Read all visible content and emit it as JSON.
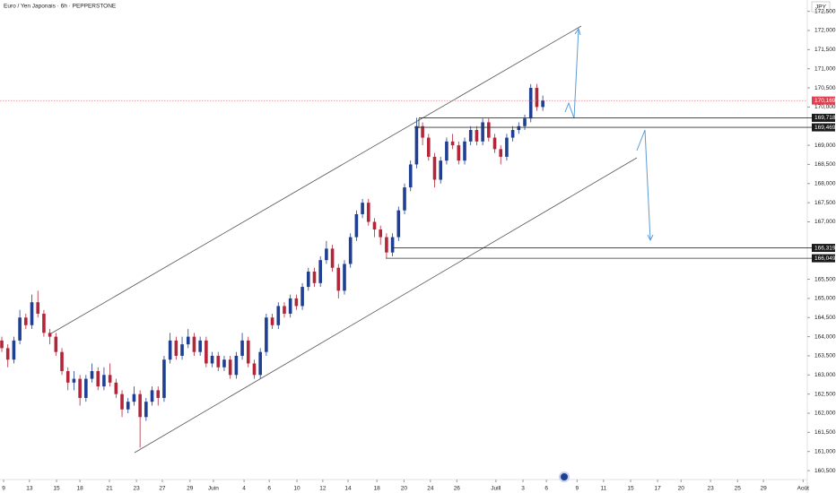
{
  "chart_data": {
    "type": "candlestick",
    "title": "Euro / Yen Japonais · 6h · PEPPERSTONE",
    "currency": "JPY",
    "up_color": "#1f3f93",
    "down_color": "#b3263a",
    "xlim": [
      -0.3,
      134
    ],
    "ylim": [
      160.267,
      172.796
    ],
    "candles": [
      [
        163.9,
        164.0,
        163.6,
        163.7
      ],
      [
        163.7,
        163.8,
        163.2,
        163.4
      ],
      [
        163.4,
        164.0,
        163.3,
        163.9
      ],
      [
        163.9,
        164.7,
        163.8,
        164.5
      ],
      [
        164.5,
        164.6,
        164.2,
        164.3
      ],
      [
        164.3,
        165.1,
        164.2,
        164.9
      ],
      [
        164.9,
        165.2,
        164.5,
        164.6
      ],
      [
        164.6,
        164.7,
        164.0,
        164.1
      ],
      [
        164.1,
        164.2,
        163.8,
        164.0
      ],
      [
        164.0,
        164.1,
        163.5,
        163.6
      ],
      [
        163.6,
        163.7,
        163.0,
        163.1
      ],
      [
        163.1,
        163.2,
        162.6,
        162.8
      ],
      [
        162.8,
        163.1,
        162.6,
        162.9
      ],
      [
        162.9,
        163.0,
        162.2,
        162.4
      ],
      [
        162.4,
        163.0,
        162.3,
        162.9
      ],
      [
        162.9,
        163.3,
        162.8,
        163.1
      ],
      [
        163.1,
        163.2,
        162.6,
        162.7
      ],
      [
        162.7,
        163.2,
        162.6,
        163.0
      ],
      [
        163.0,
        163.3,
        162.7,
        162.8
      ],
      [
        162.8,
        162.9,
        162.4,
        162.5
      ],
      [
        162.5,
        162.6,
        161.9,
        162.1
      ],
      [
        162.1,
        162.4,
        162.0,
        162.3
      ],
      [
        162.3,
        162.7,
        162.2,
        162.5
      ],
      [
        162.5,
        162.6,
        161.1,
        161.9
      ],
      [
        161.9,
        162.4,
        161.8,
        162.3
      ],
      [
        162.3,
        162.7,
        162.2,
        162.6
      ],
      [
        162.6,
        162.7,
        162.2,
        162.4
      ],
      [
        162.4,
        163.5,
        162.3,
        163.4
      ],
      [
        163.4,
        164.1,
        163.3,
        163.9
      ],
      [
        163.9,
        164.0,
        163.4,
        163.5
      ],
      [
        163.5,
        164.0,
        163.4,
        163.8
      ],
      [
        163.8,
        164.2,
        163.7,
        164.0
      ],
      [
        164.0,
        164.1,
        163.5,
        163.6
      ],
      [
        163.6,
        164.0,
        163.5,
        163.9
      ],
      [
        163.9,
        164.0,
        163.2,
        163.3
      ],
      [
        163.3,
        163.6,
        163.2,
        163.5
      ],
      [
        163.5,
        163.6,
        163.1,
        163.2
      ],
      [
        163.2,
        163.5,
        163.1,
        163.4
      ],
      [
        163.4,
        163.5,
        162.9,
        163.0
      ],
      [
        163.0,
        163.6,
        162.9,
        163.5
      ],
      [
        163.5,
        164.1,
        163.4,
        163.9
      ],
      [
        163.9,
        164.0,
        163.2,
        163.3
      ],
      [
        163.3,
        163.4,
        162.9,
        163.0
      ],
      [
        163.0,
        163.7,
        162.9,
        163.6
      ],
      [
        163.6,
        164.6,
        163.5,
        164.5
      ],
      [
        164.5,
        164.6,
        164.2,
        164.3
      ],
      [
        164.3,
        164.9,
        164.2,
        164.8
      ],
      [
        164.8,
        164.9,
        164.5,
        164.6
      ],
      [
        164.6,
        165.1,
        164.5,
        165.0
      ],
      [
        165.0,
        165.1,
        164.7,
        164.8
      ],
      [
        164.8,
        165.4,
        164.7,
        165.3
      ],
      [
        165.3,
        165.8,
        165.2,
        165.7
      ],
      [
        165.7,
        165.8,
        165.3,
        165.4
      ],
      [
        165.4,
        166.1,
        165.3,
        166.0
      ],
      [
        166.0,
        166.5,
        165.9,
        166.3
      ],
      [
        166.3,
        166.4,
        165.7,
        165.8
      ],
      [
        165.8,
        165.9,
        165.0,
        165.2
      ],
      [
        165.2,
        166.0,
        165.1,
        165.9
      ],
      [
        165.9,
        166.7,
        165.8,
        166.6
      ],
      [
        166.6,
        167.3,
        166.5,
        167.2
      ],
      [
        167.2,
        167.6,
        167.1,
        167.5
      ],
      [
        167.5,
        167.6,
        166.9,
        167.0
      ],
      [
        167.0,
        167.1,
        166.6,
        166.8
      ],
      [
        166.8,
        166.9,
        166.4,
        166.6
      ],
      [
        166.6,
        166.7,
        166.05,
        166.2
      ],
      [
        166.2,
        166.7,
        166.1,
        166.6
      ],
      [
        166.6,
        167.4,
        166.5,
        167.3
      ],
      [
        167.3,
        168.0,
        167.2,
        167.9
      ],
      [
        167.9,
        168.6,
        167.8,
        168.5
      ],
      [
        168.5,
        169.718,
        168.4,
        169.5
      ],
      [
        169.5,
        169.6,
        169.0,
        169.2
      ],
      [
        169.2,
        169.3,
        168.6,
        168.7
      ],
      [
        168.7,
        168.8,
        167.9,
        168.1
      ],
      [
        168.1,
        168.7,
        168.0,
        168.6
      ],
      [
        168.6,
        169.2,
        168.5,
        169.1
      ],
      [
        169.1,
        169.3,
        168.9,
        169.0
      ],
      [
        169.0,
        169.1,
        168.5,
        168.6
      ],
      [
        168.6,
        169.2,
        168.5,
        169.1
      ],
      [
        169.1,
        169.5,
        169.0,
        169.4
      ],
      [
        169.4,
        169.5,
        169.0,
        169.1
      ],
      [
        169.1,
        169.7,
        169.0,
        169.6
      ],
      [
        169.6,
        169.7,
        169.1,
        169.2
      ],
      [
        169.2,
        169.3,
        168.8,
        168.9
      ],
      [
        168.9,
        169.0,
        168.5,
        168.7
      ],
      [
        168.7,
        169.3,
        168.6,
        169.2
      ],
      [
        169.2,
        169.5,
        169.1,
        169.4
      ],
      [
        169.4,
        169.6,
        169.3,
        169.5
      ],
      [
        169.5,
        169.8,
        169.4,
        169.7
      ],
      [
        169.7,
        170.6,
        169.6,
        170.5
      ],
      [
        170.5,
        170.6,
        169.9,
        170.0
      ],
      [
        170.0,
        170.3,
        169.9,
        170.169
      ]
    ],
    "last_price": {
      "value": 170.169,
      "label": "170,169"
    },
    "levels": [
      {
        "value": 169.718,
        "label": "169,718"
      },
      {
        "value": 169.469,
        "label": "169,469"
      },
      {
        "value": 166.319,
        "label": "166,319"
      },
      {
        "value": 166.049,
        "label": "166,049"
      }
    ],
    "yticks": [
      {
        "value": 160.5,
        "label": "160,500"
      },
      {
        "value": 161.0,
        "label": "161,000"
      },
      {
        "value": 161.5,
        "label": "161,500"
      },
      {
        "value": 162.0,
        "label": "162,000"
      },
      {
        "value": 162.5,
        "label": "162,500"
      },
      {
        "value": 163.0,
        "label": "163,000"
      },
      {
        "value": 163.5,
        "label": "163,500"
      },
      {
        "value": 164.0,
        "label": "164,000"
      },
      {
        "value": 164.5,
        "label": "164,500"
      },
      {
        "value": 165.0,
        "label": "165,000"
      },
      {
        "value": 165.5,
        "label": "165,500"
      },
      {
        "value": 167.0,
        "label": "167,000"
      },
      {
        "value": 167.5,
        "label": "167,500"
      },
      {
        "value": 168.0,
        "label": "168,000"
      },
      {
        "value": 168.5,
        "label": "168,500"
      },
      {
        "value": 169.0,
        "label": "169,000"
      },
      {
        "value": 170.0,
        "label": "170,000"
      },
      {
        "value": 170.5,
        "label": "170,500"
      },
      {
        "value": 171.0,
        "label": "171,000"
      },
      {
        "value": 171.5,
        "label": "171,500"
      },
      {
        "value": 172.0,
        "label": "172,000"
      },
      {
        "value": 172.5,
        "label": "172,500"
      }
    ],
    "xticks": [
      {
        "value": 0.3,
        "label": "9"
      },
      {
        "value": 4.6,
        "label": "13"
      },
      {
        "value": 9.1,
        "label": "15"
      },
      {
        "value": 13,
        "label": "18"
      },
      {
        "value": 17.9,
        "label": "21"
      },
      {
        "value": 22.4,
        "label": "23"
      },
      {
        "value": 26.7,
        "label": "27"
      },
      {
        "value": 31.3,
        "label": "29"
      },
      {
        "value": 35.2,
        "label": "Juin"
      },
      {
        "value": 40.3,
        "label": "4"
      },
      {
        "value": 44.5,
        "label": "6"
      },
      {
        "value": 49.1,
        "label": "10"
      },
      {
        "value": 53.4,
        "label": "12"
      },
      {
        "value": 57.6,
        "label": "14"
      },
      {
        "value": 62.4,
        "label": "18"
      },
      {
        "value": 66.9,
        "label": "20"
      },
      {
        "value": 71.3,
        "label": "24"
      },
      {
        "value": 75.7,
        "label": "26"
      },
      {
        "value": 82.2,
        "label": "Juill"
      },
      {
        "value": 86.7,
        "label": "3"
      },
      {
        "value": 90.6,
        "label": "6"
      },
      {
        "value": 95.7,
        "label": "9"
      },
      {
        "value": 100.1,
        "label": "11"
      },
      {
        "value": 104.6,
        "label": "15"
      },
      {
        "value": 109.1,
        "label": "17"
      },
      {
        "value": 113,
        "label": "20"
      },
      {
        "value": 117.9,
        "label": "23"
      },
      {
        "value": 122.4,
        "label": "25"
      },
      {
        "value": 126.7,
        "label": "29"
      },
      {
        "value": 133.3,
        "label": "Août"
      }
    ]
  }
}
